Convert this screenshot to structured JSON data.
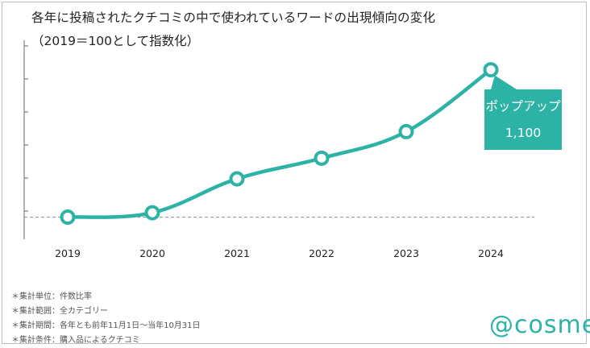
{
  "chart_data": {
    "type": "line",
    "title": "各年に投稿されたクチコミの中で使われているワードの出現傾向の変化",
    "subtitle": "（2019＝100として指数化）",
    "categories": [
      "2019",
      "2020",
      "2021",
      "2022",
      "2023",
      "2024"
    ],
    "series": [
      {
        "values": [
          100,
          130,
          360,
          500,
          680,
          1100
        ]
      }
    ],
    "baseline": 100,
    "ylim": [
      -50,
      1300
    ],
    "grid": false,
    "callout": {
      "label": "ポップアップ",
      "value": "1,100",
      "category": "2024"
    },
    "colors": {
      "line": "#2db3a6",
      "baseline": "#999999",
      "axis": "#666666"
    }
  },
  "notes": [
    "＊集計単位：件数比率",
    "＊集計範囲：全カテゴリー",
    "＊集計期間：各年とも前年11月1日～当年10月31日",
    "＊集計条件：購入品によるクチコミ"
  ],
  "logo": "@cosme"
}
